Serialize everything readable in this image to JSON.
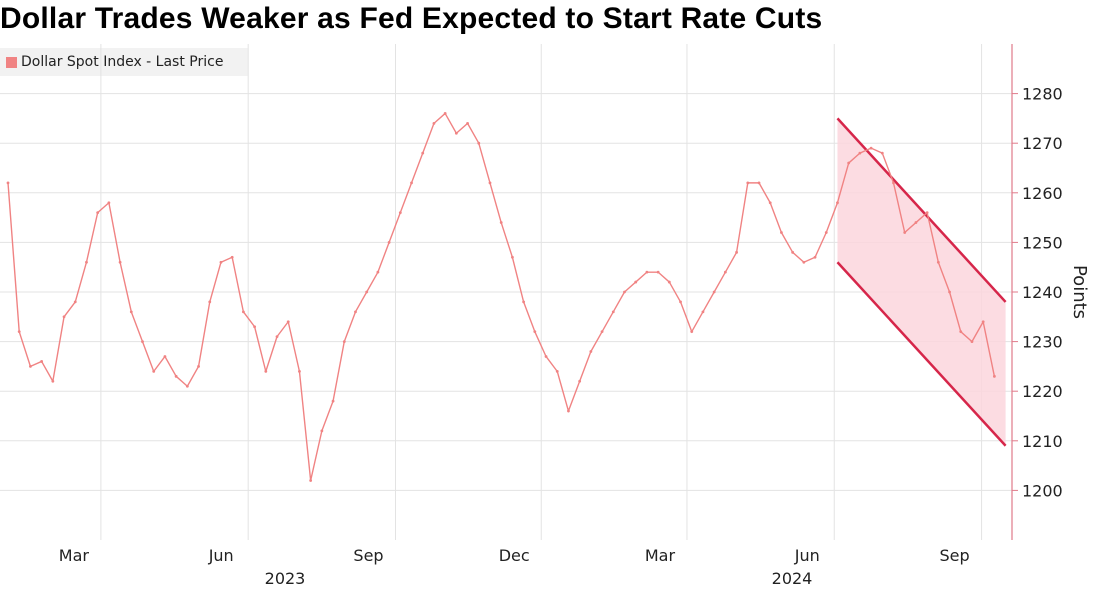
{
  "chart_data": {
    "type": "line",
    "title": "Dollar Trades Weaker as Fed Expected to Start Rate Cuts",
    "ylabel": "Points",
    "ylim": [
      1190,
      1290
    ],
    "yticks": [
      1200,
      1210,
      1220,
      1230,
      1240,
      1250,
      1260,
      1270,
      1280
    ],
    "x_month_labels": [
      "Mar",
      "Jun",
      "Sep",
      "Dec",
      "Mar",
      "Jun",
      "Sep"
    ],
    "x_year_labels": [
      "2023",
      "2024"
    ],
    "grid": true,
    "legend_position": "top-left",
    "series": [
      {
        "name": "Dollar Spot Index - Last Price",
        "color": "#f08383",
        "x": [
          "2023-01-02",
          "2023-01-09",
          "2023-01-16",
          "2023-01-23",
          "2023-01-30",
          "2023-02-06",
          "2023-02-13",
          "2023-02-20",
          "2023-02-27",
          "2023-03-06",
          "2023-03-13",
          "2023-03-20",
          "2023-03-27",
          "2023-04-03",
          "2023-04-10",
          "2023-04-17",
          "2023-04-24",
          "2023-05-01",
          "2023-05-08",
          "2023-05-15",
          "2023-05-22",
          "2023-05-29",
          "2023-06-05",
          "2023-06-12",
          "2023-06-19",
          "2023-06-26",
          "2023-07-03",
          "2023-07-10",
          "2023-07-17",
          "2023-07-24",
          "2023-07-31",
          "2023-08-07",
          "2023-08-14",
          "2023-08-21",
          "2023-08-28",
          "2023-09-04",
          "2023-09-11",
          "2023-09-18",
          "2023-09-25",
          "2023-10-02",
          "2023-10-09",
          "2023-10-16",
          "2023-10-23",
          "2023-10-30",
          "2023-11-06",
          "2023-11-13",
          "2023-11-20",
          "2023-11-27",
          "2023-12-04",
          "2023-12-11",
          "2023-12-18",
          "2023-12-25",
          "2024-01-01",
          "2024-01-08",
          "2024-01-15",
          "2024-01-22",
          "2024-01-29",
          "2024-02-05",
          "2024-02-12",
          "2024-02-19",
          "2024-02-26",
          "2024-03-04",
          "2024-03-11",
          "2024-03-18",
          "2024-03-25",
          "2024-04-01",
          "2024-04-08",
          "2024-04-15",
          "2024-04-22",
          "2024-04-29",
          "2024-05-06",
          "2024-05-13",
          "2024-05-20",
          "2024-05-27",
          "2024-06-03",
          "2024-06-10",
          "2024-06-17",
          "2024-06-24",
          "2024-07-01",
          "2024-07-08",
          "2024-07-15",
          "2024-07-22",
          "2024-07-29",
          "2024-08-05",
          "2024-08-12",
          "2024-08-19",
          "2024-08-26",
          "2024-09-02",
          "2024-09-09"
        ],
        "values": [
          1262,
          1232,
          1225,
          1226,
          1222,
          1235,
          1238,
          1246,
          1256,
          1258,
          1246,
          1236,
          1230,
          1224,
          1227,
          1223,
          1221,
          1225,
          1238,
          1246,
          1247,
          1236,
          1233,
          1224,
          1231,
          1234,
          1224,
          1202,
          1212,
          1218,
          1230,
          1236,
          1240,
          1244,
          1250,
          1256,
          1262,
          1268,
          1274,
          1276,
          1272,
          1274,
          1270,
          1262,
          1254,
          1247,
          1238,
          1232,
          1227,
          1224,
          1216,
          1222,
          1228,
          1232,
          1236,
          1240,
          1242,
          1244,
          1244,
          1242,
          1238,
          1232,
          1236,
          1240,
          1244,
          1248,
          1262,
          1262,
          1258,
          1252,
          1248,
          1246,
          1247,
          1252,
          1258,
          1266,
          1268,
          1269,
          1268,
          1262,
          1252,
          1254,
          1256,
          1246,
          1240,
          1232,
          1230,
          1234,
          1223
        ]
      }
    ],
    "annotations": [
      {
        "type": "downtrend-channel",
        "color": "#d6264a",
        "fill": "#fbd6dd",
        "upper": [
          [
            "2024-06-03",
            1275
          ],
          [
            "2024-09-16",
            1238
          ]
        ],
        "lower": [
          [
            "2024-06-03",
            1246
          ],
          [
            "2024-09-16",
            1209
          ]
        ]
      }
    ]
  }
}
